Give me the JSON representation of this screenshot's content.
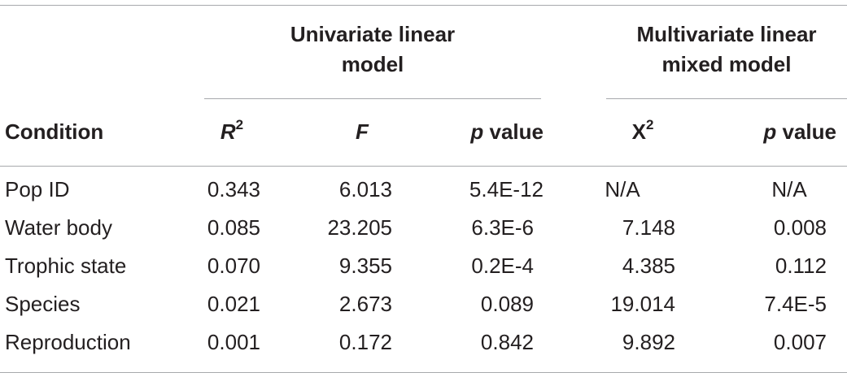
{
  "groups": {
    "univariate_line1": "Univariate linear",
    "univariate_line2": "model",
    "multivariate_line1": "Multivariate linear",
    "multivariate_line2": "mixed model"
  },
  "columns": {
    "condition": "Condition",
    "r2_base": "R",
    "r2_sup": "2",
    "f": "F",
    "p_italic": "p",
    "p_rest": " value",
    "x2_base": "X",
    "x2_sup": "2"
  },
  "rows": [
    {
      "condition": "Pop ID",
      "r2": "0.343",
      "f": "6.013",
      "p_uni": "5.4E-12",
      "x2": "N/A",
      "p_multi": "N/A"
    },
    {
      "condition": "Water body",
      "r2": "0.085",
      "f": "23.205",
      "p_uni": "6.3E-6",
      "x2": "7.148",
      "p_multi": "0.008"
    },
    {
      "condition": "Trophic state",
      "r2": "0.070",
      "f": "9.355",
      "p_uni": "0.2E-4",
      "x2": "4.385",
      "p_multi": "0.112"
    },
    {
      "condition": "Species",
      "r2": "0.021",
      "f": "2.673",
      "p_uni": "0.089",
      "x2": "19.014",
      "p_multi": "7.4E-5"
    },
    {
      "condition": "Reproduction",
      "r2": "0.001",
      "f": "0.172",
      "p_uni": "0.842",
      "x2": "9.892",
      "p_multi": "0.007"
    }
  ]
}
